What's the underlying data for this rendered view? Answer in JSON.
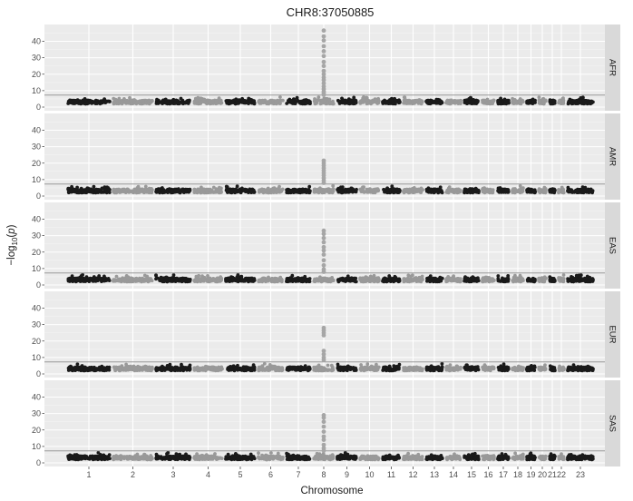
{
  "chart_data": {
    "type": "scatter",
    "title": "CHR8:37050885",
    "xlabel": "Chromosome",
    "ylabel": "−log10(p)",
    "ylim": [
      0,
      48
    ],
    "yticks": [
      0,
      10,
      20,
      30,
      40
    ],
    "significance_line": 7.3,
    "grid": true,
    "colors": {
      "panel_bg": "#ebebeb",
      "strip_bg": "#d9d9d9",
      "grid_major": "#ffffff",
      "odd_chromosomes": "#1a1a1a",
      "even_chromosomes": "#999999",
      "hit_points": "#a6a6a6",
      "threshold_line": "#999999"
    },
    "chromosomes": [
      "1",
      "2",
      "3",
      "4",
      "5",
      "6",
      "7",
      "8",
      "9",
      "10",
      "11",
      "12",
      "13",
      "14",
      "15",
      "16",
      "17",
      "18",
      "19",
      "20",
      "21",
      "22",
      "23"
    ],
    "panels": [
      {
        "population": "AFR",
        "hit_chromosome": "8",
        "hit_values": [
          46.5,
          43,
          40.5,
          37,
          34,
          31,
          27.5,
          25,
          22,
          20,
          18,
          16.5,
          14.5,
          12.5,
          11,
          9.5,
          8.5,
          7.5
        ]
      },
      {
        "population": "AMR",
        "hit_chromosome": "8",
        "hit_values": [
          21.5,
          20,
          18.5,
          17,
          15.5,
          14,
          12.5,
          11,
          9.5,
          8
        ]
      },
      {
        "population": "EAS",
        "hit_chromosome": "8",
        "hit_values": [
          33,
          31,
          28.5,
          26,
          23,
          21,
          18.5,
          15,
          12,
          9.5,
          8
        ]
      },
      {
        "population": "EUR",
        "hit_chromosome": "8",
        "hit_values": [
          28,
          26.5,
          25,
          23.5,
          14,
          12,
          10,
          8.5
        ]
      },
      {
        "population": "SAS",
        "hit_chromosome": "8",
        "hit_values": [
          29,
          27.5,
          25,
          22,
          19,
          16,
          14,
          11,
          9,
          7.5
        ]
      }
    ]
  }
}
